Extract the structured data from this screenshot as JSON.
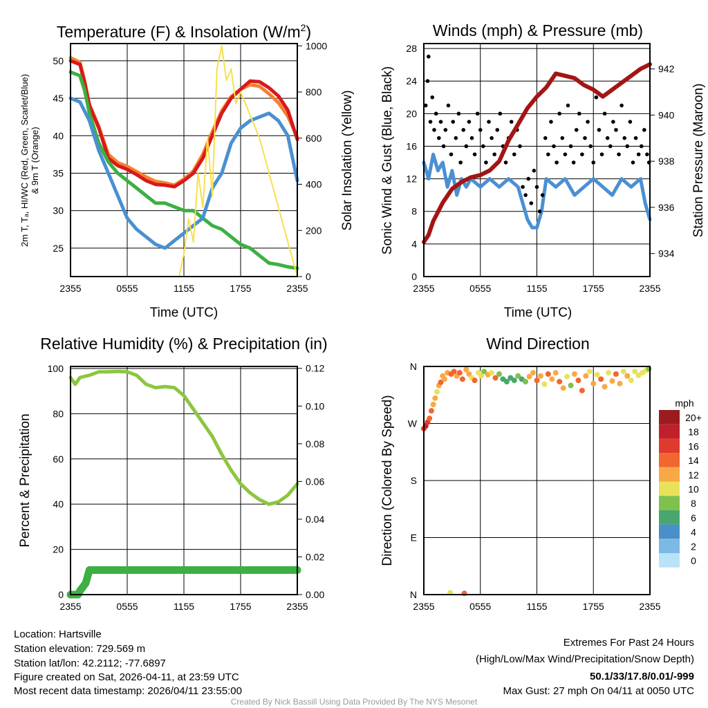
{
  "chart_data": [
    {
      "type": "line",
      "title": "Temperature (F) & Insolation (W/m²)",
      "title_text": "Temperature (F) & Insolation (W/m",
      "title_sup": "2",
      "title_end": ")",
      "xlabel": "Time (UTC)",
      "ylabel_line1": "2m T, Tₐ, HI/WC (Red, Green, Scarlet/Blue)",
      "ylabel_line2": "& 9m T (Orange)",
      "ylabel": "2m T, Td, HI/WC (Red, Green, Scarlet/Blue) & 9m T (Orange)",
      "y2label": "Solar Insolation (Yellow)",
      "xticks": [
        "2355",
        "0555",
        "1155",
        "1755",
        "2355"
      ],
      "xlim_hours": [
        0,
        24
      ],
      "ylim": [
        21.2,
        52.3
      ],
      "yticks": [
        25,
        30,
        35,
        40,
        45,
        50
      ],
      "y2lim": [
        0,
        1000
      ],
      "y2ticks": [
        0,
        200,
        400,
        600,
        800,
        1000
      ],
      "series": [
        {
          "name": "9m T",
          "color": "#f58231",
          "x": [
            0,
            1,
            1.5,
            2,
            3,
            4,
            5,
            6,
            7,
            8,
            9,
            10,
            11,
            12,
            13,
            14,
            15,
            16,
            17,
            18,
            19,
            20,
            21,
            22,
            23,
            24
          ],
          "values": [
            50.4,
            49.8,
            47.3,
            44.2,
            41.2,
            37.5,
            36.4,
            35.9,
            35.2,
            34.5,
            33.9,
            33.7,
            33.4,
            34.2,
            35.3,
            37.5,
            40.5,
            43.3,
            45.2,
            46.2,
            46.8,
            46.6,
            45.6,
            44.4,
            42.6,
            39.8
          ]
        },
        {
          "name": "2m T",
          "color": "#d7191c",
          "x": [
            0,
            1,
            1.5,
            2,
            3,
            4,
            5,
            6,
            7,
            8,
            9,
            10,
            11,
            12,
            13,
            14,
            15,
            16,
            17,
            18,
            19,
            20,
            21,
            22,
            23,
            24
          ],
          "values": [
            50.0,
            49.5,
            47.0,
            44.0,
            41.0,
            37.0,
            36.0,
            35.5,
            34.8,
            34.0,
            33.5,
            33.4,
            33.2,
            34.0,
            35.0,
            37.0,
            40.0,
            43.0,
            45.0,
            46.2,
            47.3,
            47.2,
            46.4,
            45.3,
            43.4,
            39.5
          ]
        },
        {
          "name": "Td",
          "color": "#3cb043",
          "x": [
            0,
            1,
            1.5,
            2,
            3,
            4,
            5,
            6,
            7,
            8,
            9,
            10,
            11,
            12,
            13,
            14,
            15,
            16,
            17,
            18,
            19,
            20,
            21,
            22,
            23,
            24
          ],
          "values": [
            48.5,
            48.0,
            46.0,
            43.0,
            39.0,
            36.5,
            35.0,
            34.0,
            33.0,
            32.0,
            31.0,
            31.0,
            30.5,
            30.0,
            30.0,
            29.0,
            28.0,
            27.5,
            26.5,
            25.5,
            25.0,
            24.0,
            23.0,
            22.8,
            22.5,
            22.3
          ]
        },
        {
          "name": "WC",
          "color": "#4a90d2",
          "x": [
            0,
            1,
            2,
            3,
            4,
            5,
            6,
            7,
            8,
            9,
            10,
            11,
            12,
            13,
            14,
            15,
            16,
            17,
            18,
            19,
            20,
            21,
            22,
            23,
            24
          ],
          "values": [
            45,
            44.5,
            42,
            38,
            35,
            32,
            29,
            27.5,
            26.5,
            25.5,
            25,
            26,
            27,
            28,
            29,
            33,
            35,
            39,
            41,
            42,
            42.5,
            43,
            42,
            40,
            34
          ]
        },
        {
          "name": "Solar",
          "axis": "right",
          "color": "#f7e04b",
          "x": [
            0,
            11.5,
            12,
            12.5,
            13,
            13.5,
            14,
            14.5,
            15,
            15.5,
            16,
            16.5,
            17,
            17.5,
            18,
            19,
            20,
            21,
            22,
            23,
            24
          ],
          "values": [
            0,
            0,
            100,
            250,
            150,
            450,
            300,
            600,
            350,
            900,
            1000,
            850,
            900,
            750,
            800,
            700,
            600,
            450,
            300,
            150,
            0
          ]
        }
      ]
    },
    {
      "type": "line",
      "title": "Winds (mph) & Pressure (mb)",
      "xlabel": "Time (UTC)",
      "ylabel": "Sonic Wind & Gust (Blue, Black)",
      "y2label": "Station Pressure (Maroon)",
      "xticks": [
        "2355",
        "0555",
        "1155",
        "1755",
        "2355"
      ],
      "ylim": [
        0,
        28
      ],
      "yticks": [
        0,
        4,
        8,
        12,
        16,
        20,
        24,
        28
      ],
      "y2lim": [
        933.0,
        943.0
      ],
      "y2ticks": [
        934,
        936,
        938,
        940,
        942
      ],
      "series": [
        {
          "name": "Wind speed",
          "color": "#4a90d2",
          "x": [
            0,
            0.5,
            1,
            1.5,
            2,
            2.5,
            3,
            3.5,
            4,
            4.5,
            5,
            6,
            7,
            8,
            9,
            10,
            10.5,
            11,
            11.5,
            12,
            12.5,
            13,
            14,
            15,
            16,
            17,
            18,
            19,
            20,
            21,
            22,
            23,
            23.5,
            24
          ],
          "values": [
            14,
            12,
            15,
            13,
            14,
            11,
            13,
            10,
            12,
            11,
            12,
            11,
            12,
            11,
            12,
            11,
            9,
            7,
            6,
            6,
            8,
            12,
            11,
            12,
            10,
            11,
            12,
            11,
            10,
            12,
            11,
            12,
            9,
            7
          ]
        },
        {
          "name": "Gust",
          "color": "#000000",
          "x": [
            0.2,
            0.4,
            0.5,
            0.7,
            0.9,
            1.1,
            1.3,
            1.6,
            1.8,
            2.1,
            2.3,
            2.6,
            2.9,
            3.1,
            3.4,
            3.7,
            3.9,
            4.2,
            4.5,
            4.8,
            5.1,
            5.4,
            5.7,
            6.0,
            6.3,
            6.6,
            6.9,
            7.2,
            7.5,
            7.8,
            8.1,
            8.4,
            8.7,
            9.0,
            9.3,
            9.6,
            9.9,
            10.2,
            10.5,
            10.8,
            11.1,
            11.4,
            11.7,
            12.0,
            12.3,
            12.6,
            12.9,
            13.2,
            13.5,
            13.8,
            14.1,
            14.4,
            14.7,
            15.0,
            15.3,
            15.6,
            15.9,
            16.2,
            16.5,
            16.8,
            17.1,
            17.4,
            17.7,
            18.0,
            18.3,
            18.6,
            18.9,
            19.2,
            19.5,
            19.8,
            20.1,
            20.4,
            20.7,
            21.0,
            21.3,
            21.6,
            21.9,
            22.2,
            22.5,
            22.8,
            23.1,
            23.4,
            23.7,
            23.9
          ],
          "values": [
            21,
            24,
            27,
            19,
            22,
            18,
            20,
            17,
            19,
            16,
            18,
            21,
            15,
            19,
            17,
            20,
            14,
            18,
            16,
            19,
            17,
            15,
            20,
            18,
            16,
            14,
            19,
            17,
            15,
            18,
            20,
            16,
            14,
            17,
            19,
            15,
            18,
            16,
            11,
            10,
            12,
            9,
            13,
            11,
            8,
            10,
            17,
            15,
            19,
            16,
            14,
            20,
            17,
            15,
            21,
            16,
            14,
            18,
            20,
            15,
            17,
            19,
            16,
            14,
            22,
            18,
            15,
            20,
            17,
            16,
            19,
            18,
            15,
            21,
            17,
            16,
            19,
            14,
            17,
            15,
            16,
            18,
            15,
            14
          ]
        },
        {
          "name": "Pressure",
          "axis": "right",
          "color": "#a31515",
          "x": [
            0,
            0.5,
            1,
            2,
            3,
            4,
            5,
            6,
            7,
            8,
            9,
            10,
            11,
            12,
            13,
            14,
            15,
            16,
            17,
            18,
            19,
            20,
            21,
            22,
            23,
            24
          ],
          "values": [
            934.5,
            934.8,
            935.4,
            936.2,
            936.8,
            937.1,
            937.3,
            937.4,
            937.6,
            938.0,
            938.9,
            939.6,
            940.3,
            940.8,
            941.2,
            941.8,
            941.7,
            941.6,
            941.3,
            941.1,
            940.8,
            941.1,
            941.4,
            941.7,
            942.0,
            942.2
          ]
        }
      ]
    },
    {
      "type": "line",
      "title": "Relative Humidity (%) & Precipitation (in)",
      "ylabel": "Percent & Precipitation",
      "xticks": [
        "2355",
        "0555",
        "1155",
        "1755",
        "2355"
      ],
      "ylim": [
        0,
        100
      ],
      "yticks": [
        0,
        20,
        40,
        60,
        80,
        100
      ],
      "y2lim": [
        0,
        0.12
      ],
      "y2ticks": [
        "0.00",
        "0.02",
        "0.04",
        "0.06",
        "0.08",
        "0.10",
        "0.12"
      ],
      "series": [
        {
          "name": "RH",
          "color": "#8cc63f",
          "x": [
            0,
            0.5,
            1,
            2,
            3,
            4,
            5,
            6,
            7,
            8,
            9,
            10,
            11,
            12,
            13,
            14,
            15,
            16,
            17,
            18,
            19,
            20,
            21,
            22,
            23,
            24
          ],
          "values": [
            96,
            93,
            96,
            97,
            98.5,
            98.5,
            98.7,
            98.5,
            97,
            93,
            91.5,
            92,
            91.5,
            88,
            82,
            76,
            70,
            62,
            55,
            49,
            45,
            42,
            40,
            41,
            44,
            49
          ]
        },
        {
          "name": "Precipitation",
          "axis": "right",
          "color": "#3cb043",
          "x": [
            0,
            0.8,
            1,
            1.3,
            1.6,
            2,
            24
          ],
          "values": [
            0,
            0,
            0.002,
            0.004,
            0.006,
            0.013,
            0.013
          ]
        }
      ]
    },
    {
      "type": "scatter",
      "title": "Wind Direction",
      "ylabel": "Direction (Colored By Speed)",
      "xticks": [
        "2355",
        "0555",
        "1155",
        "1755",
        "2355"
      ],
      "yticks": [
        "N",
        "E",
        "S",
        "W",
        "N"
      ],
      "ylim_degrees": [
        0,
        360
      ],
      "legend_title": "mph",
      "legend_labels": [
        "20+",
        "18",
        "16",
        "14",
        "12",
        "10",
        "8",
        "6",
        "4",
        "2",
        "0"
      ],
      "legend_colors": [
        "#9b1b1e",
        "#c1202a",
        "#df3a2e",
        "#f26630",
        "#f9a846",
        "#e8e25a",
        "#7ec14c",
        "#48a76e",
        "#4b8fc8",
        "#7db9e5",
        "#b9e3f7"
      ],
      "points": [
        [
          0,
          262,
          16
        ],
        [
          0.2,
          266,
          17
        ],
        [
          0.4,
          272,
          16
        ],
        [
          0.6,
          278,
          14
        ],
        [
          0.8,
          290,
          13
        ],
        [
          1.0,
          300,
          12
        ],
        [
          1.2,
          310,
          11
        ],
        [
          1.4,
          320,
          10
        ],
        [
          1.6,
          330,
          12
        ],
        [
          1.8,
          335,
          13
        ],
        [
          2.0,
          345,
          12
        ],
        [
          2.2,
          340,
          11
        ],
        [
          2.5,
          350,
          12
        ],
        [
          2.8,
          3,
          10
        ],
        [
          2.9,
          348,
          14
        ],
        [
          3.2,
          352,
          13
        ],
        [
          3.5,
          345,
          12
        ],
        [
          3.8,
          350,
          13
        ],
        [
          4.1,
          340,
          14
        ],
        [
          4.3,
          2,
          13
        ],
        [
          4.5,
          355,
          11
        ],
        [
          4.8,
          348,
          12
        ],
        [
          5.1,
          342,
          10
        ],
        [
          5.4,
          338,
          13
        ],
        [
          5.8,
          350,
          9
        ],
        [
          6.1,
          345,
          10
        ],
        [
          6.4,
          352,
          7
        ],
        [
          6.8,
          347,
          12
        ],
        [
          7.2,
          350,
          9
        ],
        [
          7.6,
          342,
          13
        ],
        [
          8.0,
          348,
          8
        ],
        [
          8.4,
          340,
          6
        ],
        [
          8.8,
          336,
          6
        ],
        [
          9.2,
          342,
          5
        ],
        [
          9.6,
          338,
          6
        ],
        [
          10.0,
          345,
          7
        ],
        [
          10.4,
          340,
          6
        ],
        [
          10.8,
          336,
          8
        ],
        [
          11.2,
          344,
          12
        ],
        [
          11.6,
          350,
          11
        ],
        [
          12.0,
          338,
          13
        ],
        [
          12.4,
          345,
          12
        ],
        [
          12.8,
          332,
          10
        ],
        [
          13.2,
          348,
          13
        ],
        [
          13.6,
          340,
          11
        ],
        [
          14.0,
          350,
          12
        ],
        [
          14.4,
          336,
          13
        ],
        [
          14.8,
          326,
          12
        ],
        [
          15.2,
          344,
          10
        ],
        [
          15.6,
          330,
          8
        ],
        [
          16.0,
          348,
          12
        ],
        [
          16.4,
          338,
          13
        ],
        [
          16.8,
          322,
          13
        ],
        [
          17.2,
          345,
          11
        ],
        [
          17.6,
          352,
          10
        ],
        [
          18.0,
          333,
          12
        ],
        [
          18.4,
          347,
          9
        ],
        [
          18.8,
          340,
          13
        ],
        [
          19.2,
          328,
          12
        ],
        [
          19.6,
          350,
          10
        ],
        [
          20.0,
          337,
          12
        ],
        [
          20.4,
          348,
          13
        ],
        [
          20.8,
          333,
          11
        ],
        [
          21.2,
          352,
          10
        ],
        [
          21.6,
          345,
          12
        ],
        [
          22.0,
          338,
          10
        ],
        [
          22.4,
          352,
          9
        ],
        [
          22.8,
          346,
          10
        ],
        [
          23.2,
          350,
          10
        ],
        [
          23.6,
          354,
          9
        ],
        [
          23.9,
          356,
          8
        ]
      ]
    }
  ],
  "footer": {
    "location": "Location: Hartsville",
    "elevation": "Station elevation: 729.569 m",
    "latlon": "Station lat/lon: 42.2112; -77.6897",
    "created": "Figure created on Sat, 2026-04-11, at 23:59 UTC",
    "recent": "Most recent data timestamp: 2026/04/11 23:55:00",
    "extremes_title": "Extremes For Past 24 Hours",
    "extremes_legend": "(High/Low/Max Wind/Precipitation/Snow Depth)",
    "extremes_values": "50.1/33/17.8/0.01/-999",
    "max_gust": "Max Gust: 27 mph On 04/11 at 0050 UTC",
    "credit": "Created By Nick Bassill Using Data Provided By The NYS Mesonet"
  },
  "colors": {
    "extremes": "#d7191c",
    "credit": "#999999"
  }
}
